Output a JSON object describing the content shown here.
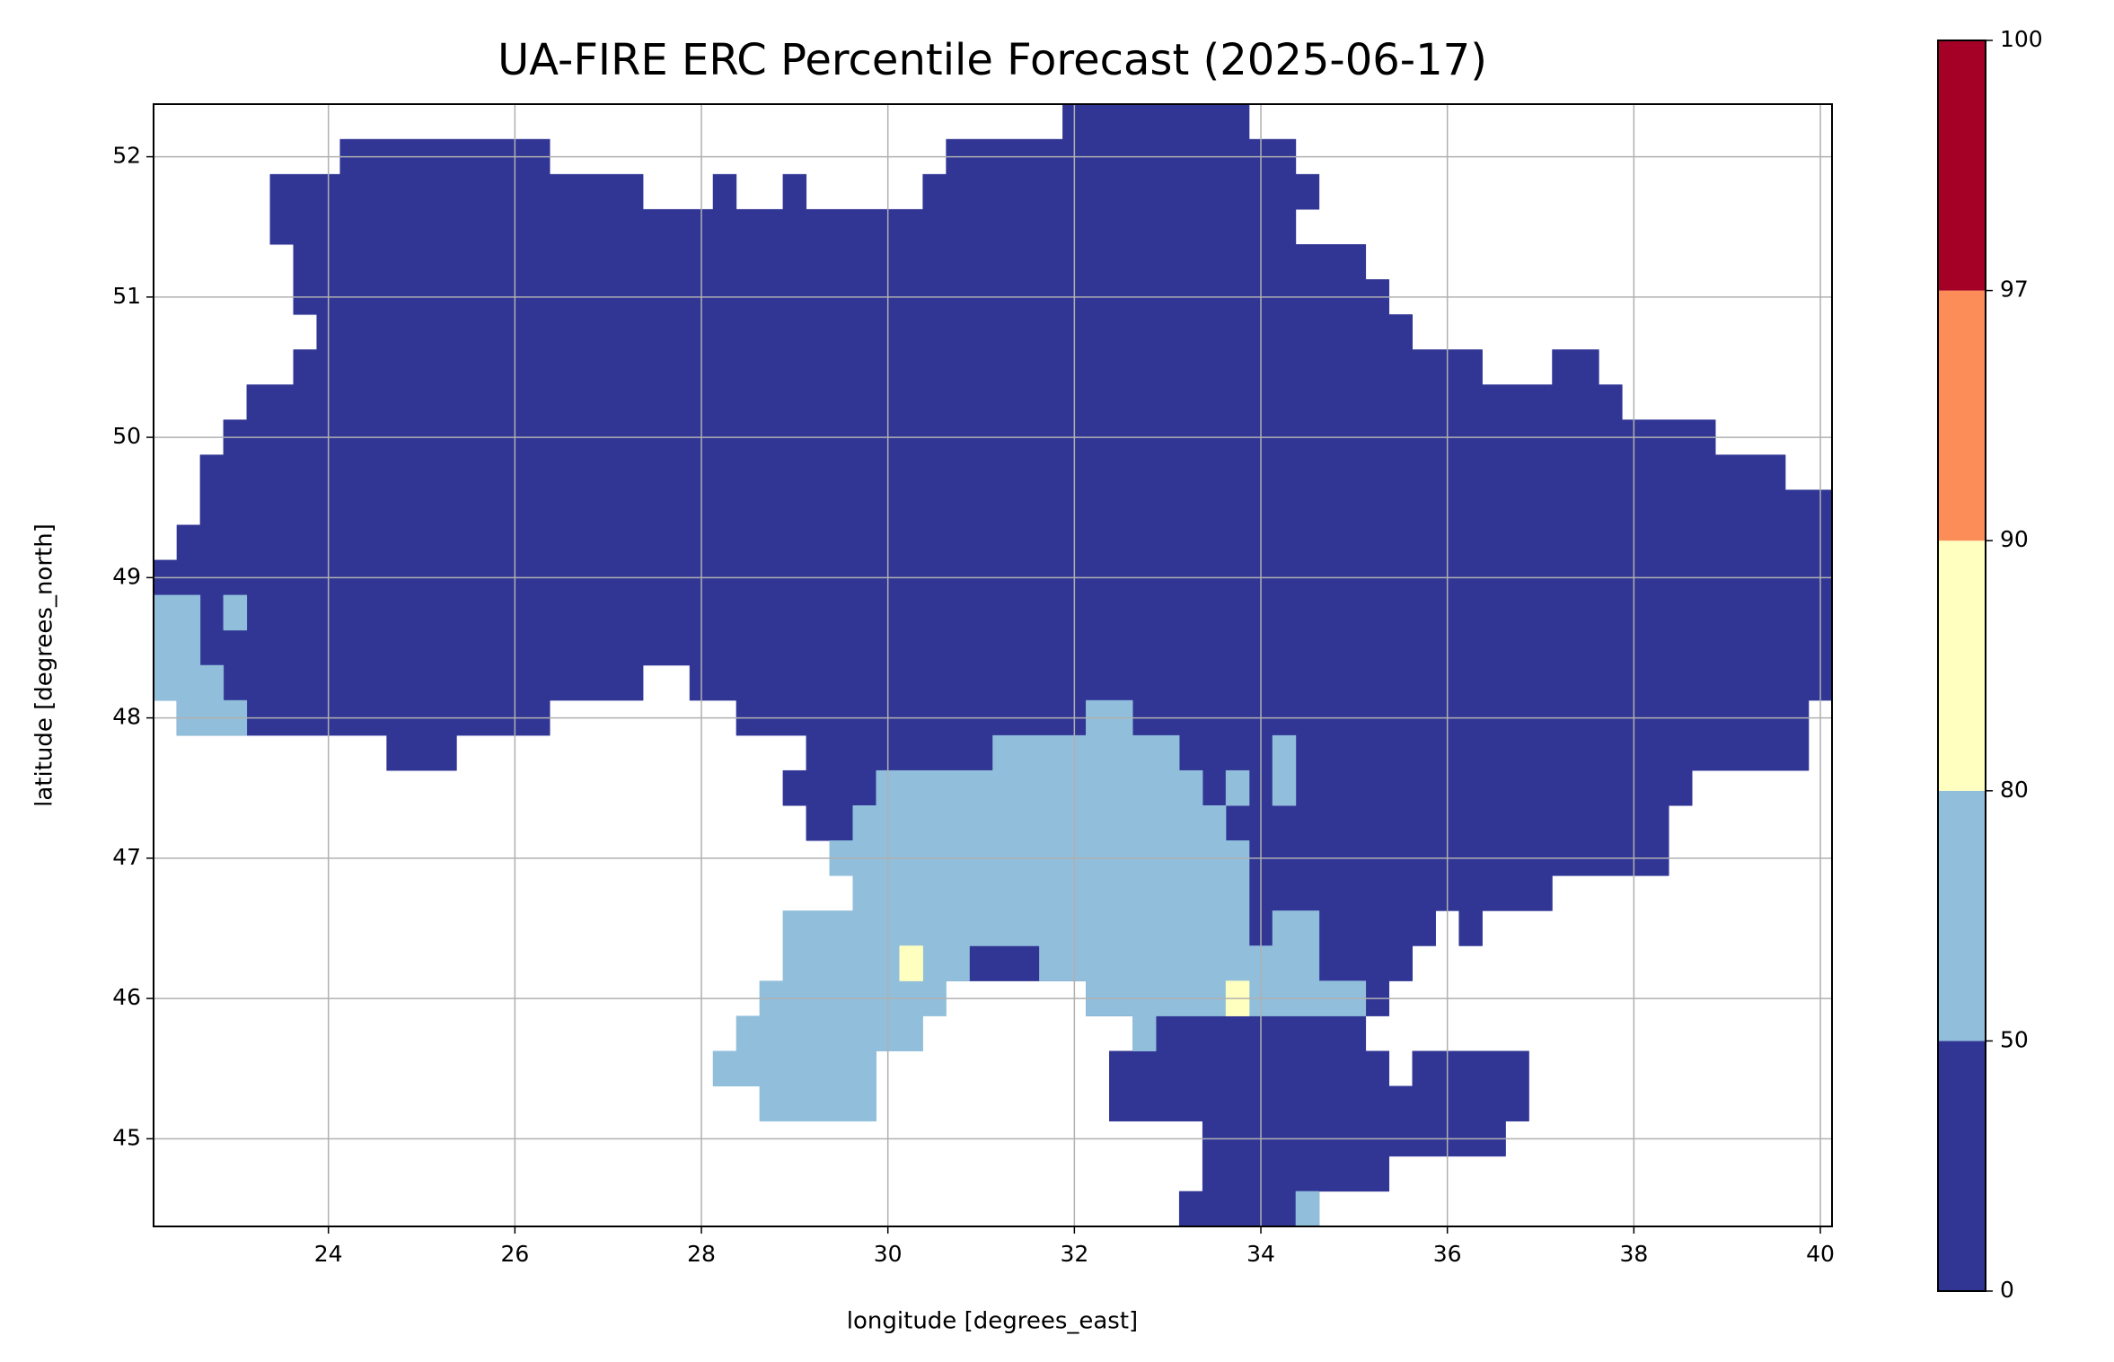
{
  "chart_data": {
    "type": "map",
    "title": "UA-FIRE ERC Percentile Forecast (2025-06-17)",
    "x_label": "longitude [degrees_east]",
    "y_label": "latitude [degrees_north]",
    "xlim": [
      22.125,
      40.125
    ],
    "ylim": [
      44.375,
      52.375
    ],
    "xticks": [
      24,
      26,
      28,
      30,
      32,
      34,
      36,
      38,
      40
    ],
    "yticks": [
      45,
      46,
      47,
      48,
      49,
      50,
      51,
      52
    ],
    "grid": true,
    "colorbar": {
      "bounds": [
        0,
        50,
        80,
        90,
        97,
        100
      ],
      "colors": [
        "#313695",
        "#91bfdb",
        "#ffffbf",
        "#fc8d59",
        "#a50026"
      ]
    },
    "regions": [
      {
        "value": 25,
        "polygon": [
          [
            23.375,
            51.875
          ],
          [
            24.125,
            51.875
          ],
          [
            24.125,
            52.125
          ],
          [
            26.375,
            52.125
          ],
          [
            26.375,
            51.875
          ],
          [
            27.375,
            51.875
          ],
          [
            27.375,
            51.625
          ],
          [
            28.125,
            51.625
          ],
          [
            28.125,
            51.875
          ],
          [
            28.375,
            51.875
          ],
          [
            28.375,
            51.625
          ],
          [
            28.875,
            51.625
          ],
          [
            28.875,
            51.875
          ],
          [
            29.125,
            51.875
          ],
          [
            29.125,
            51.625
          ],
          [
            30.375,
            51.625
          ],
          [
            30.375,
            51.875
          ],
          [
            30.625,
            51.875
          ],
          [
            30.625,
            52.125
          ],
          [
            31.875,
            52.125
          ],
          [
            31.875,
            52.375
          ],
          [
            33.875,
            52.375
          ],
          [
            33.875,
            52.125
          ],
          [
            34.375,
            52.125
          ],
          [
            34.375,
            51.875
          ],
          [
            34.625,
            51.875
          ],
          [
            34.625,
            51.625
          ],
          [
            34.375,
            51.625
          ],
          [
            34.375,
            51.375
          ],
          [
            35.125,
            51.375
          ],
          [
            35.125,
            51.125
          ],
          [
            35.375,
            51.125
          ],
          [
            35.375,
            50.875
          ],
          [
            35.625,
            50.875
          ],
          [
            35.625,
            50.625
          ],
          [
            36.375,
            50.625
          ],
          [
            36.375,
            50.375
          ],
          [
            37.125,
            50.375
          ],
          [
            37.125,
            50.625
          ],
          [
            37.625,
            50.625
          ],
          [
            37.625,
            50.375
          ],
          [
            37.875,
            50.375
          ],
          [
            37.875,
            50.125
          ],
          [
            38.875,
            50.125
          ],
          [
            38.875,
            49.875
          ],
          [
            39.625,
            49.875
          ],
          [
            39.625,
            49.625
          ],
          [
            40.125,
            49.625
          ],
          [
            40.125,
            48.125
          ],
          [
            39.875,
            48.125
          ],
          [
            39.875,
            47.625
          ],
          [
            38.625,
            47.625
          ],
          [
            38.625,
            47.375
          ],
          [
            38.375,
            47.375
          ],
          [
            38.375,
            46.875
          ],
          [
            37.125,
            46.875
          ],
          [
            37.125,
            46.625
          ],
          [
            36.375,
            46.625
          ],
          [
            36.375,
            46.375
          ],
          [
            36.125,
            46.375
          ],
          [
            36.125,
            46.625
          ],
          [
            35.875,
            46.625
          ],
          [
            35.875,
            46.375
          ],
          [
            35.625,
            46.375
          ],
          [
            35.625,
            46.125
          ],
          [
            35.375,
            46.125
          ],
          [
            35.375,
            45.875
          ],
          [
            32.125,
            45.875
          ],
          [
            32.125,
            46.125
          ],
          [
            29.625,
            46.125
          ],
          [
            29.625,
            47.125
          ],
          [
            29.125,
            47.125
          ],
          [
            29.125,
            47.375
          ],
          [
            28.875,
            47.375
          ],
          [
            28.875,
            47.625
          ],
          [
            29.125,
            47.625
          ],
          [
            29.125,
            47.875
          ],
          [
            28.375,
            47.875
          ],
          [
            28.375,
            48.125
          ],
          [
            27.875,
            48.125
          ],
          [
            27.875,
            48.375
          ],
          [
            27.375,
            48.375
          ],
          [
            27.375,
            48.125
          ],
          [
            26.375,
            48.125
          ],
          [
            26.375,
            47.875
          ],
          [
            25.375,
            47.875
          ],
          [
            25.375,
            47.625
          ],
          [
            24.625,
            47.625
          ],
          [
            24.625,
            47.875
          ],
          [
            22.375,
            47.875
          ],
          [
            22.375,
            48.125
          ],
          [
            22.125,
            48.125
          ],
          [
            22.125,
            49.125
          ],
          [
            22.375,
            49.125
          ],
          [
            22.375,
            49.375
          ],
          [
            22.625,
            49.375
          ],
          [
            22.625,
            49.875
          ],
          [
            22.875,
            49.875
          ],
          [
            22.875,
            50.125
          ],
          [
            23.125,
            50.125
          ],
          [
            23.125,
            50.375
          ],
          [
            23.625,
            50.375
          ],
          [
            23.625,
            50.625
          ],
          [
            23.875,
            50.625
          ],
          [
            23.875,
            50.875
          ],
          [
            23.625,
            50.875
          ],
          [
            23.625,
            51.375
          ],
          [
            23.375,
            51.375
          ]
        ]
      },
      {
        "value": 25,
        "polygon": [
          [
            32.375,
            45.625
          ],
          [
            32.875,
            45.625
          ],
          [
            32.875,
            45.875
          ],
          [
            35.125,
            45.875
          ],
          [
            35.125,
            45.625
          ],
          [
            35.375,
            45.625
          ],
          [
            35.375,
            45.375
          ],
          [
            35.625,
            45.375
          ],
          [
            35.625,
            45.625
          ],
          [
            36.875,
            45.625
          ],
          [
            36.875,
            45.125
          ],
          [
            36.625,
            45.125
          ],
          [
            36.625,
            44.875
          ],
          [
            35.375,
            44.875
          ],
          [
            35.375,
            44.625
          ],
          [
            34.625,
            44.625
          ],
          [
            34.625,
            44.375
          ],
          [
            33.125,
            44.375
          ],
          [
            33.125,
            44.625
          ],
          [
            33.375,
            44.625
          ],
          [
            33.375,
            45.125
          ],
          [
            32.375,
            45.125
          ]
        ]
      },
      {
        "value": 65,
        "polygon": [
          [
            29.875,
            47.625
          ],
          [
            31.125,
            47.625
          ],
          [
            31.125,
            47.875
          ],
          [
            32.125,
            47.875
          ],
          [
            32.125,
            48.125
          ],
          [
            32.625,
            48.125
          ],
          [
            32.625,
            47.875
          ],
          [
            33.125,
            47.875
          ],
          [
            33.125,
            47.625
          ],
          [
            33.375,
            47.625
          ],
          [
            33.375,
            47.375
          ],
          [
            33.625,
            47.375
          ],
          [
            33.625,
            47.125
          ],
          [
            33.875,
            47.125
          ],
          [
            33.875,
            46.375
          ],
          [
            34.125,
            46.375
          ],
          [
            34.125,
            46.625
          ],
          [
            34.625,
            46.625
          ],
          [
            34.625,
            46.125
          ],
          [
            35.125,
            46.125
          ],
          [
            35.125,
            45.875
          ],
          [
            32.875,
            45.875
          ],
          [
            32.875,
            45.625
          ],
          [
            32.625,
            45.625
          ],
          [
            32.625,
            45.875
          ],
          [
            32.125,
            45.875
          ],
          [
            32.125,
            46.125
          ],
          [
            31.625,
            46.125
          ],
          [
            31.625,
            46.375
          ],
          [
            30.875,
            46.375
          ],
          [
            30.875,
            46.125
          ],
          [
            30.625,
            46.125
          ],
          [
            30.625,
            45.875
          ],
          [
            30.375,
            45.875
          ],
          [
            30.375,
            45.625
          ],
          [
            29.875,
            45.625
          ],
          [
            29.875,
            45.125
          ],
          [
            28.625,
            45.125
          ],
          [
            28.625,
            45.375
          ],
          [
            28.125,
            45.375
          ],
          [
            28.125,
            45.625
          ],
          [
            28.375,
            45.625
          ],
          [
            28.375,
            45.875
          ],
          [
            28.625,
            45.875
          ],
          [
            28.625,
            46.125
          ],
          [
            28.875,
            46.125
          ],
          [
            28.875,
            46.625
          ],
          [
            29.625,
            46.625
          ],
          [
            29.625,
            46.875
          ],
          [
            29.375,
            46.875
          ],
          [
            29.375,
            47.125
          ],
          [
            29.625,
            47.125
          ],
          [
            29.625,
            47.375
          ],
          [
            29.875,
            47.375
          ]
        ]
      },
      {
        "value": 65,
        "polygon": [
          [
            22.125,
            48.875
          ],
          [
            22.625,
            48.875
          ],
          [
            22.625,
            48.375
          ],
          [
            22.875,
            48.375
          ],
          [
            22.875,
            48.125
          ],
          [
            23.125,
            48.125
          ],
          [
            23.125,
            47.875
          ],
          [
            22.375,
            47.875
          ],
          [
            22.375,
            48.125
          ],
          [
            22.125,
            48.125
          ]
        ]
      },
      {
        "value": 65,
        "polygon": [
          [
            22.875,
            48.875
          ],
          [
            23.125,
            48.875
          ],
          [
            23.125,
            48.625
          ],
          [
            22.875,
            48.625
          ]
        ]
      },
      {
        "value": 65,
        "polygon": [
          [
            34.125,
            47.875
          ],
          [
            34.375,
            47.875
          ],
          [
            34.375,
            47.375
          ],
          [
            34.125,
            47.375
          ]
        ]
      },
      {
        "value": 65,
        "polygon": [
          [
            33.625,
            47.625
          ],
          [
            33.875,
            47.625
          ],
          [
            33.875,
            47.375
          ],
          [
            33.625,
            47.375
          ]
        ]
      },
      {
        "value": 65,
        "polygon": [
          [
            34.375,
            44.625
          ],
          [
            34.625,
            44.625
          ],
          [
            34.625,
            44.375
          ],
          [
            34.375,
            44.375
          ]
        ]
      },
      {
        "value": 85,
        "polygon": [
          [
            30.125,
            46.375
          ],
          [
            30.375,
            46.375
          ],
          [
            30.375,
            46.125
          ],
          [
            30.125,
            46.125
          ]
        ]
      },
      {
        "value": 85,
        "polygon": [
          [
            33.625,
            46.125
          ],
          [
            33.875,
            46.125
          ],
          [
            33.875,
            45.875
          ],
          [
            33.625,
            45.875
          ]
        ]
      }
    ]
  }
}
